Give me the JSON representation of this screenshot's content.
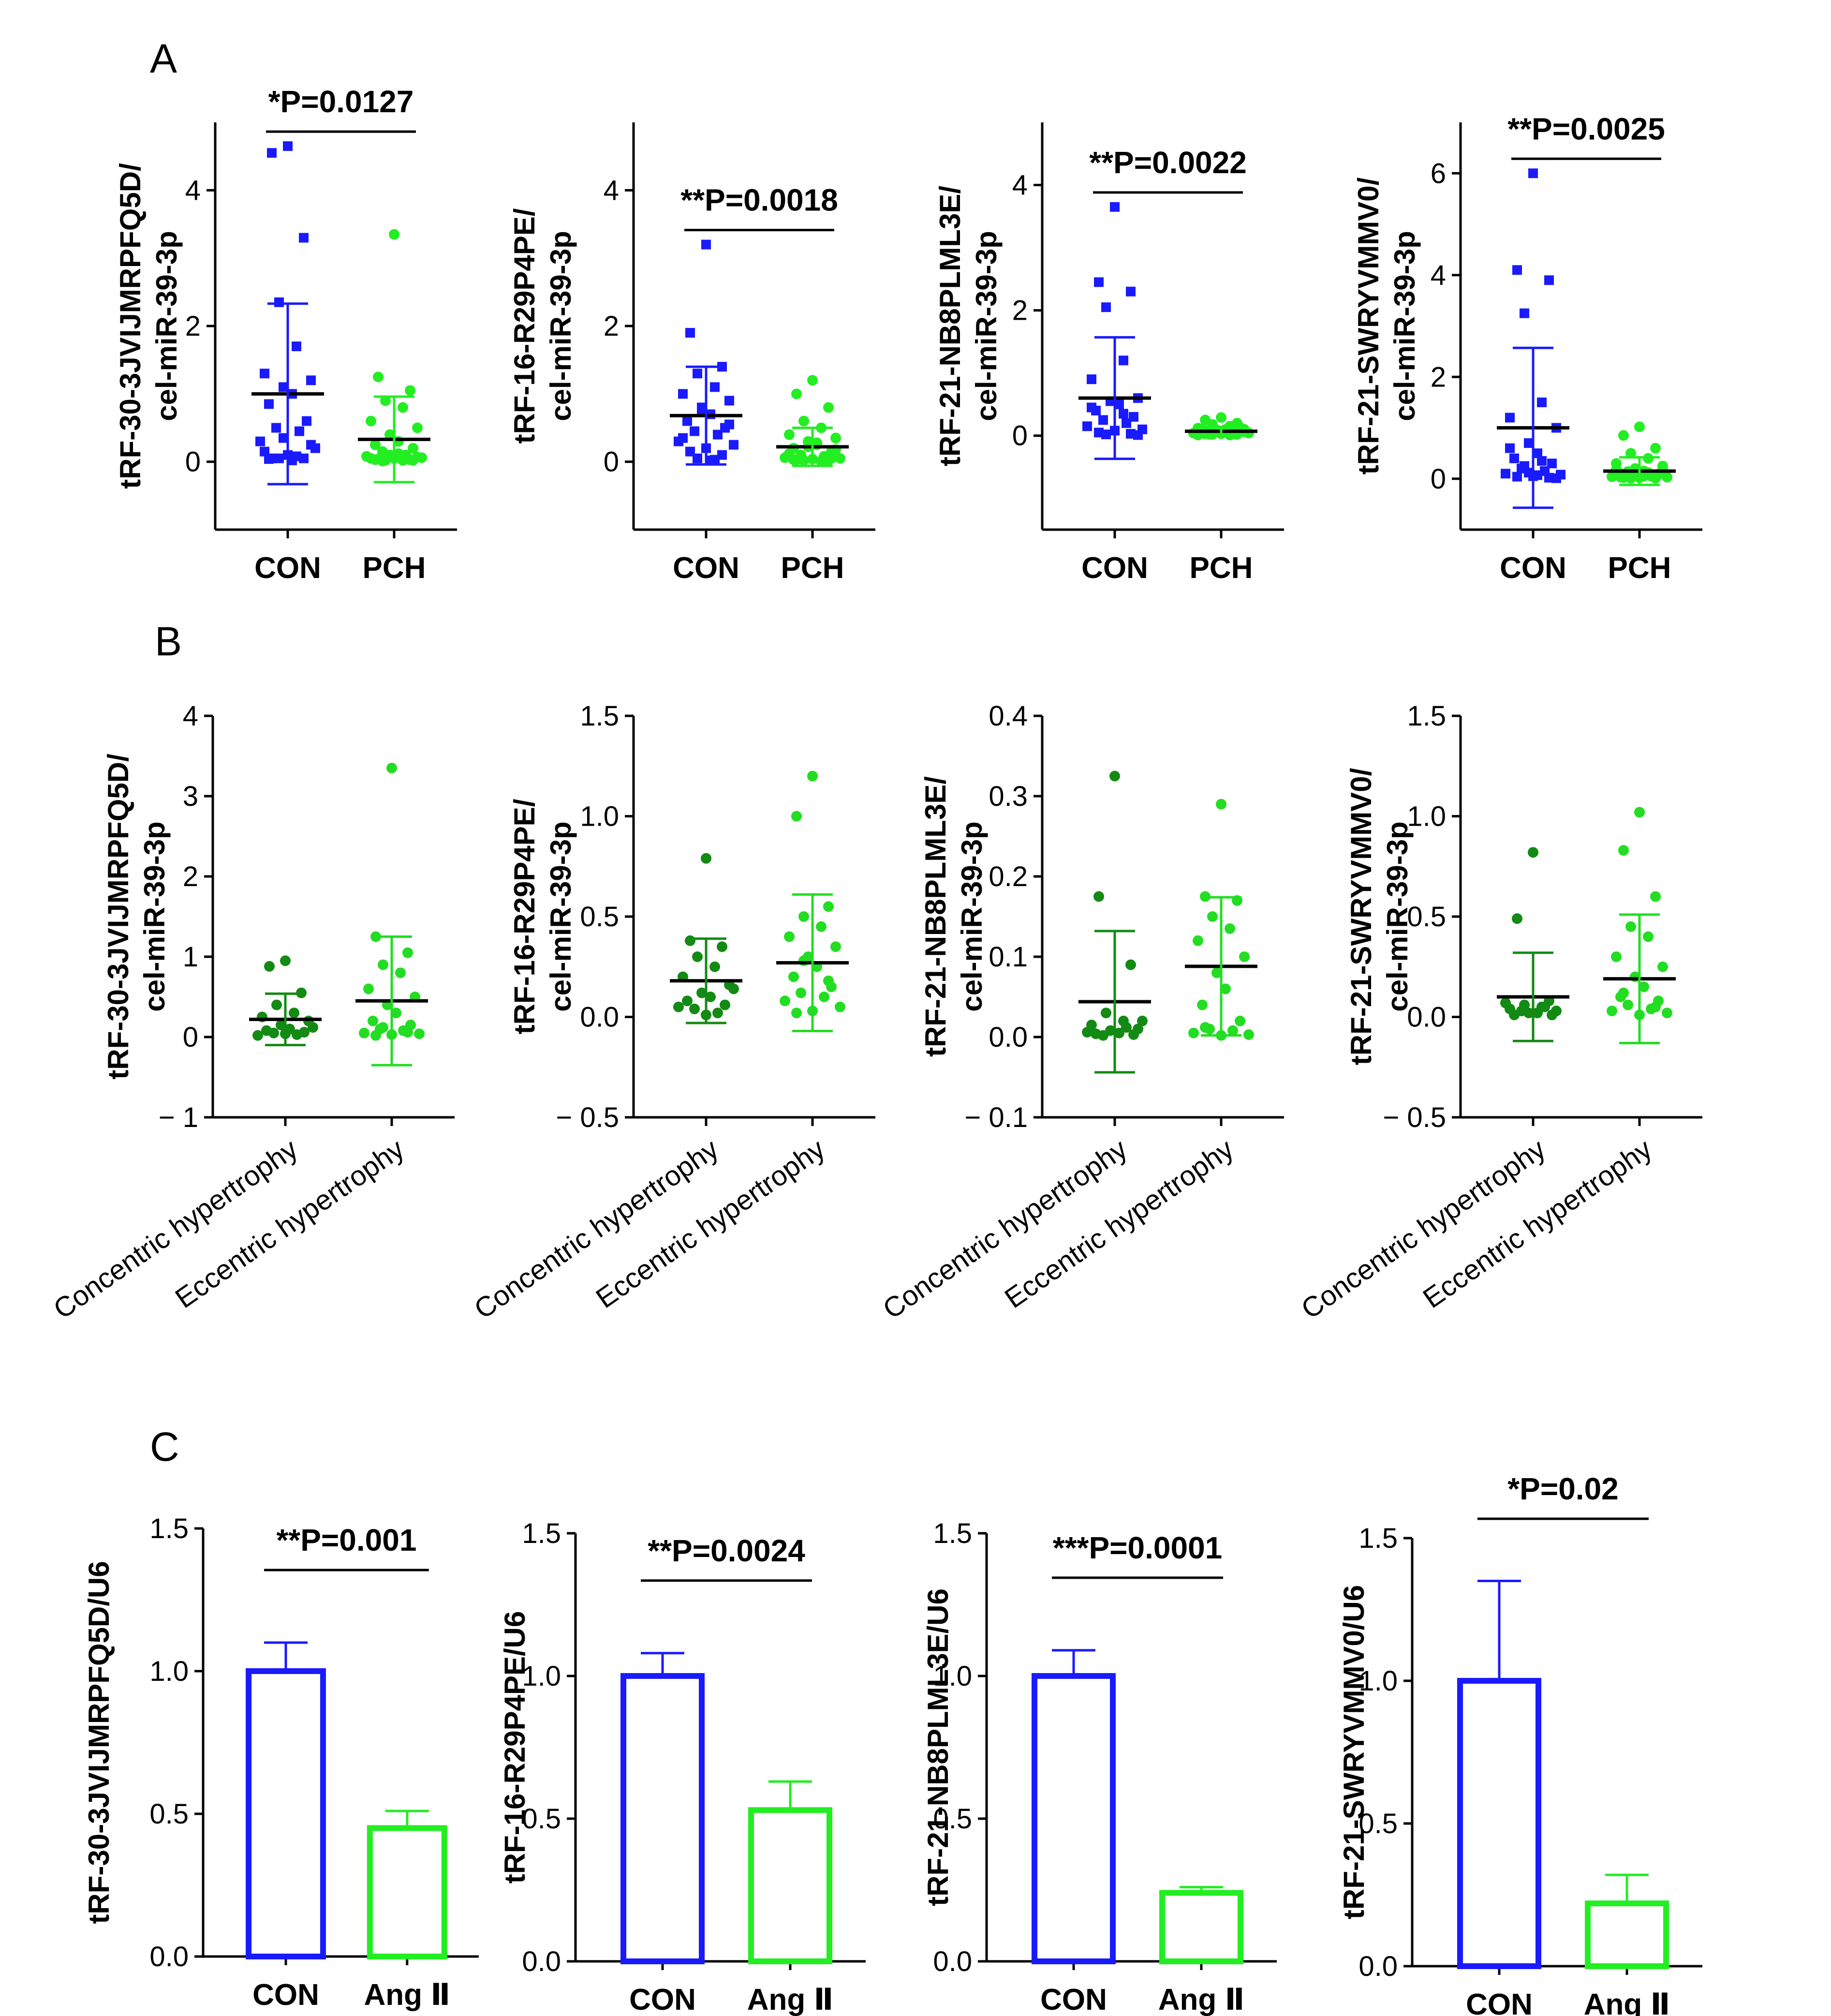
{
  "panels": {
    "A": "A",
    "B": "B",
    "C": "C"
  },
  "colors": {
    "con_blue": "#1a1aff",
    "pch_green": "#22ee22",
    "conc_green": "#138a13",
    "ecc_green": "#22dd22",
    "axis": "#000000"
  },
  "chart_data": [
    {
      "id": "A1",
      "panel": "A",
      "type": "scatter",
      "ylabel": [
        "tRF-30-3JVIJMRPFQ5D/",
        "cel-miR-39-3p"
      ],
      "ylim": [
        -1,
        5
      ],
      "ticks": [
        0,
        2,
        4
      ],
      "tick_labels": [
        "0",
        "2",
        "4"
      ],
      "categories": [
        "CON",
        "PCH"
      ],
      "pvalue": "*P=0.0127",
      "groups": [
        {
          "name": "CON",
          "color": "#1a1aff",
          "marker": "square",
          "mean": 1.0,
          "sd": 1.33,
          "points": [
            4.65,
            4.55,
            3.3,
            2.35,
            1.7,
            1.3,
            1.2,
            1.1,
            1.0,
            0.85,
            0.6,
            0.5,
            0.45,
            0.3,
            0.2,
            0.1,
            0.05,
            0.05,
            0.05,
            0.08,
            0.15,
            0.25,
            0.35,
            0.02,
            0.04
          ]
        },
        {
          "name": "PCH",
          "color": "#22ee22",
          "marker": "circle",
          "mean": 0.33,
          "sd": 0.63,
          "points": [
            3.35,
            1.25,
            1.05,
            0.9,
            0.8,
            0.6,
            0.5,
            0.4,
            0.3,
            0.25,
            0.2,
            0.15,
            0.1,
            0.08,
            0.06,
            0.05,
            0.04,
            0.03,
            0.02,
            0.02,
            0.05,
            0.07,
            0.1,
            0.12,
            0.03,
            0.02,
            0.01
          ]
        }
      ]
    },
    {
      "id": "A2",
      "panel": "A",
      "type": "scatter",
      "ylabel": [
        "tRF-16-R29P4PE/",
        "cel-miR-39-3p"
      ],
      "ylim": [
        -1,
        5
      ],
      "ticks": [
        0,
        2,
        4
      ],
      "tick_labels": [
        "0",
        "2",
        "4"
      ],
      "categories": [
        "CON",
        "PCH"
      ],
      "pvalue": "**P=0.0018",
      "groups": [
        {
          "name": "CON",
          "color": "#1a1aff",
          "marker": "square",
          "mean": 0.68,
          "sd": 0.72,
          "points": [
            3.2,
            1.9,
            1.4,
            1.3,
            1.1,
            1.0,
            0.9,
            0.8,
            0.7,
            0.6,
            0.5,
            0.45,
            0.4,
            0.3,
            0.25,
            0.2,
            0.15,
            0.1,
            0.05,
            0.03,
            0.35,
            0.55,
            0.75,
            0.02
          ]
        },
        {
          "name": "PCH",
          "color": "#22ee22",
          "marker": "circle",
          "mean": 0.22,
          "sd": 0.28,
          "points": [
            1.2,
            1.0,
            0.8,
            0.6,
            0.5,
            0.4,
            0.35,
            0.3,
            0.25,
            0.2,
            0.15,
            0.1,
            0.08,
            0.06,
            0.05,
            0.04,
            0.03,
            0.02,
            0.02,
            0.01,
            0.12,
            0.18,
            0.22,
            0.28,
            0.03,
            0.05,
            0.07,
            0.02
          ]
        }
      ]
    },
    {
      "id": "A3",
      "panel": "A",
      "type": "scatter",
      "ylabel": [
        "tRF-21-NB8PLML3E/",
        "cel-miR-39-3p"
      ],
      "ylim": [
        -1.5,
        5
      ],
      "ticks": [
        0,
        2,
        4
      ],
      "tick_labels": [
        "0",
        "2",
        "4"
      ],
      "categories": [
        "CON",
        "PCH"
      ],
      "pvalue": "**P=0.0022",
      "groups": [
        {
          "name": "CON",
          "color": "#1a1aff",
          "marker": "square",
          "mean": 0.6,
          "sd": 0.97,
          "points": [
            3.65,
            2.45,
            2.3,
            2.05,
            1.2,
            0.9,
            0.6,
            0.55,
            0.5,
            0.4,
            0.3,
            0.25,
            0.2,
            0.15,
            0.1,
            0.08,
            0.05,
            0.03,
            0.02,
            0.35,
            0.45,
            0.01
          ]
        },
        {
          "name": "PCH",
          "color": "#22ee22",
          "marker": "circle",
          "mean": 0.07,
          "sd": 0.07,
          "points": [
            0.29,
            0.25,
            0.2,
            0.18,
            0.15,
            0.12,
            0.1,
            0.09,
            0.08,
            0.07,
            0.06,
            0.05,
            0.05,
            0.04,
            0.04,
            0.03,
            0.03,
            0.02,
            0.02,
            0.01,
            0.01,
            0.06,
            0.08,
            0.1,
            0.11,
            0.13,
            0.02,
            0.04
          ]
        }
      ]
    },
    {
      "id": "A4",
      "panel": "A",
      "type": "scatter",
      "ylabel": [
        "tRF-21-SWRYVMMV0/",
        "cel-miR-39-3p"
      ],
      "ylim": [
        -1,
        7
      ],
      "ticks": [
        0,
        2,
        4,
        6
      ],
      "tick_labels": [
        "0",
        "2",
        "4",
        "6"
      ],
      "categories": [
        "CON",
        "PCH"
      ],
      "pvalue": "**P=0.0025",
      "groups": [
        {
          "name": "CON",
          "color": "#1a1aff",
          "marker": "square",
          "mean": 1.0,
          "sd": 1.57,
          "points": [
            6.0,
            4.1,
            3.9,
            3.25,
            1.5,
            1.2,
            1.0,
            0.7,
            0.5,
            0.4,
            0.3,
            0.2,
            0.15,
            0.1,
            0.08,
            0.05,
            0.04,
            0.02,
            0.25,
            0.35,
            0.6,
            0.01,
            0.12,
            0.07
          ]
        },
        {
          "name": "PCH",
          "color": "#22ee22",
          "marker": "circle",
          "mean": 0.15,
          "sd": 0.27,
          "points": [
            1.02,
            0.85,
            0.6,
            0.5,
            0.4,
            0.3,
            0.25,
            0.2,
            0.15,
            0.1,
            0.08,
            0.06,
            0.05,
            0.04,
            0.03,
            0.02,
            0.02,
            0.01,
            0.01,
            0.12,
            0.18,
            0.22,
            0.07,
            0.05,
            0.03,
            0.09,
            0.14
          ]
        }
      ]
    },
    {
      "id": "B1",
      "panel": "B",
      "type": "scatter",
      "ylabel": [
        "tRF-30-3JVIJMRPFQ5D/",
        "cel-miR-39-3p"
      ],
      "ylim": [
        -1,
        4
      ],
      "ticks": [
        -1,
        0,
        1,
        2,
        3,
        4
      ],
      "tick_labels": [
        "− 1",
        "0",
        "1",
        "2",
        "3",
        "4"
      ],
      "categories": [
        "Concentric hypertrophy",
        "Eccentric hypertrophy"
      ],
      "pvalue": "",
      "groups": [
        {
          "name": "Concentric hypertrophy",
          "color": "#138a13",
          "marker": "circle",
          "mean": 0.22,
          "sd": 0.32,
          "points": [
            0.95,
            0.88,
            0.55,
            0.4,
            0.3,
            0.25,
            0.2,
            0.15,
            0.1,
            0.08,
            0.06,
            0.05,
            0.03,
            0.02,
            0.12,
            0.04
          ]
        },
        {
          "name": "Eccentric hypertrophy",
          "color": "#22dd22",
          "marker": "circle",
          "mean": 0.45,
          "sd": 0.8,
          "points": [
            3.35,
            1.25,
            1.05,
            0.9,
            0.8,
            0.6,
            0.5,
            0.4,
            0.3,
            0.2,
            0.15,
            0.1,
            0.08,
            0.05,
            0.04,
            0.03,
            0.02,
            0.06,
            0.12
          ]
        }
      ]
    },
    {
      "id": "B2",
      "panel": "B",
      "type": "scatter",
      "ylabel": [
        "tRF-16-R29P4PE/",
        "cel-miR-39-3p"
      ],
      "ylim": [
        -0.5,
        1.5
      ],
      "ticks": [
        -0.5,
        0,
        0.5,
        1.0,
        1.5
      ],
      "tick_labels": [
        "− 0.5",
        "0.0",
        "0.5",
        "1.0",
        "1.5"
      ],
      "categories": [
        "Concentric hypertrophy",
        "Eccentric hypertrophy"
      ],
      "pvalue": "",
      "groups": [
        {
          "name": "Concentric hypertrophy",
          "color": "#138a13",
          "marker": "circle",
          "mean": 0.18,
          "sd": 0.21,
          "points": [
            0.79,
            0.38,
            0.35,
            0.3,
            0.25,
            0.2,
            0.16,
            0.12,
            0.1,
            0.08,
            0.06,
            0.04,
            0.02,
            0.05,
            0.14,
            0.01
          ]
        },
        {
          "name": "Eccentric hypertrophy",
          "color": "#22dd22",
          "marker": "circle",
          "mean": 0.27,
          "sd": 0.34,
          "points": [
            1.2,
            1.0,
            0.55,
            0.5,
            0.45,
            0.4,
            0.35,
            0.3,
            0.25,
            0.2,
            0.15,
            0.12,
            0.1,
            0.08,
            0.05,
            0.03,
            0.02,
            0.18,
            0.28
          ]
        }
      ]
    },
    {
      "id": "B3",
      "panel": "B",
      "type": "scatter",
      "ylabel": [
        "tRF-21-NB8PLML3E/",
        "cel-miR-39-3p"
      ],
      "ylim": [
        -0.1,
        0.4
      ],
      "ticks": [
        -0.1,
        0,
        0.1,
        0.2,
        0.3,
        0.4
      ],
      "tick_labels": [
        "− 0.1",
        "0.0",
        "0.1",
        "0.2",
        "0.3",
        "0.4"
      ],
      "categories": [
        "Concentric hypertrophy",
        "Eccentric hypertrophy"
      ],
      "pvalue": "",
      "groups": [
        {
          "name": "Concentric hypertrophy",
          "color": "#138a13",
          "marker": "circle",
          "mean": 0.044,
          "sd": 0.088,
          "points": [
            0.325,
            0.175,
            0.09,
            0.03,
            0.02,
            0.015,
            0.01,
            0.008,
            0.005,
            0.004,
            0.003,
            0.002,
            0.012,
            0.006,
            0.02
          ]
        },
        {
          "name": "Eccentric hypertrophy",
          "color": "#22dd22",
          "marker": "circle",
          "mean": 0.088,
          "sd": 0.086,
          "points": [
            0.29,
            0.175,
            0.17,
            0.15,
            0.135,
            0.12,
            0.1,
            0.08,
            0.06,
            0.04,
            0.02,
            0.01,
            0.008,
            0.005,
            0.003,
            0.002,
            0.012
          ]
        }
      ]
    },
    {
      "id": "B4",
      "panel": "B",
      "type": "scatter",
      "ylabel": [
        "tRF-21-SWRYVMMV0/",
        "cel-miR-39-3p"
      ],
      "ylim": [
        -0.5,
        1.5
      ],
      "ticks": [
        -0.5,
        0,
        0.5,
        1.0,
        1.5
      ],
      "tick_labels": [
        "− 0.5",
        "0.0",
        "0.5",
        "1.0",
        "1.5"
      ],
      "categories": [
        "Concentric hypertrophy",
        "Eccentric hypertrophy"
      ],
      "pvalue": "",
      "groups": [
        {
          "name": "Concentric hypertrophy",
          "color": "#138a13",
          "marker": "circle",
          "mean": 0.1,
          "sd": 0.22,
          "points": [
            0.82,
            0.49,
            0.08,
            0.06,
            0.05,
            0.04,
            0.03,
            0.02,
            0.02,
            0.01,
            0.01,
            0.03,
            0.05,
            0.07
          ]
        },
        {
          "name": "Eccentric hypertrophy",
          "color": "#22dd22",
          "marker": "circle",
          "mean": 0.19,
          "sd": 0.32,
          "points": [
            1.02,
            0.83,
            0.6,
            0.45,
            0.4,
            0.3,
            0.25,
            0.2,
            0.15,
            0.1,
            0.08,
            0.06,
            0.04,
            0.03,
            0.02,
            0.01,
            0.12,
            0.05
          ]
        }
      ]
    },
    {
      "id": "C1",
      "panel": "C",
      "type": "bar",
      "ylabel": [
        "tRF-30-3JVIJMRPFQ5D/U6"
      ],
      "ylim": [
        0,
        1.5
      ],
      "ticks": [
        0,
        0.5,
        1.0,
        1.5
      ],
      "tick_labels": [
        "0.0",
        "0.5",
        "1.0",
        "1.5"
      ],
      "categories": [
        "CON",
        "Ang Ⅱ"
      ],
      "pvalue": "**P=0.001",
      "groups": [
        {
          "name": "CON",
          "color": "#1a1aff",
          "value": 1.0,
          "err": 0.1
        },
        {
          "name": "Ang Ⅱ",
          "color": "#22ee22",
          "value": 0.45,
          "err": 0.06
        }
      ]
    },
    {
      "id": "C2",
      "panel": "C",
      "type": "bar",
      "ylabel": [
        "tRF-16-R29P4PE/U6"
      ],
      "ylim": [
        0,
        1.5
      ],
      "ticks": [
        0,
        0.5,
        1.0,
        1.5
      ],
      "tick_labels": [
        "0.0",
        "0.5",
        "1.0",
        "1.5"
      ],
      "categories": [
        "CON",
        "Ang Ⅱ"
      ],
      "pvalue": "**P=0.0024",
      "groups": [
        {
          "name": "CON",
          "color": "#1a1aff",
          "value": 1.0,
          "err": 0.08
        },
        {
          "name": "Ang Ⅱ",
          "color": "#22ee22",
          "value": 0.53,
          "err": 0.1
        }
      ]
    },
    {
      "id": "C3",
      "panel": "C",
      "type": "bar",
      "ylabel": [
        "tRF-21-NB8PLML3E/U6"
      ],
      "ylim": [
        0,
        1.5
      ],
      "ticks": [
        0,
        0.5,
        1.0,
        1.5
      ],
      "tick_labels": [
        "0.0",
        "0.5",
        "1.0",
        "1.5"
      ],
      "categories": [
        "CON",
        "Ang Ⅱ"
      ],
      "pvalue": "***P=0.0001",
      "groups": [
        {
          "name": "CON",
          "color": "#1a1aff",
          "value": 1.0,
          "err": 0.09
        },
        {
          "name": "Ang Ⅱ",
          "color": "#22ee22",
          "value": 0.24,
          "err": 0.02
        }
      ]
    },
    {
      "id": "C4",
      "panel": "C",
      "type": "bar",
      "ylabel": [
        "tRF-21-SWRYVMMV0/U6"
      ],
      "ylim": [
        0,
        1.5
      ],
      "ticks": [
        0,
        0.5,
        1.0,
        1.5
      ],
      "tick_labels": [
        "0.0",
        "0.5",
        "1.0",
        "1.5"
      ],
      "categories": [
        "CON",
        "Ang Ⅱ"
      ],
      "pvalue": "*P=0.02",
      "groups": [
        {
          "name": "CON",
          "color": "#1a1aff",
          "value": 1.0,
          "err": 0.35
        },
        {
          "name": "Ang Ⅱ",
          "color": "#22ee22",
          "value": 0.22,
          "err": 0.1
        }
      ]
    }
  ]
}
